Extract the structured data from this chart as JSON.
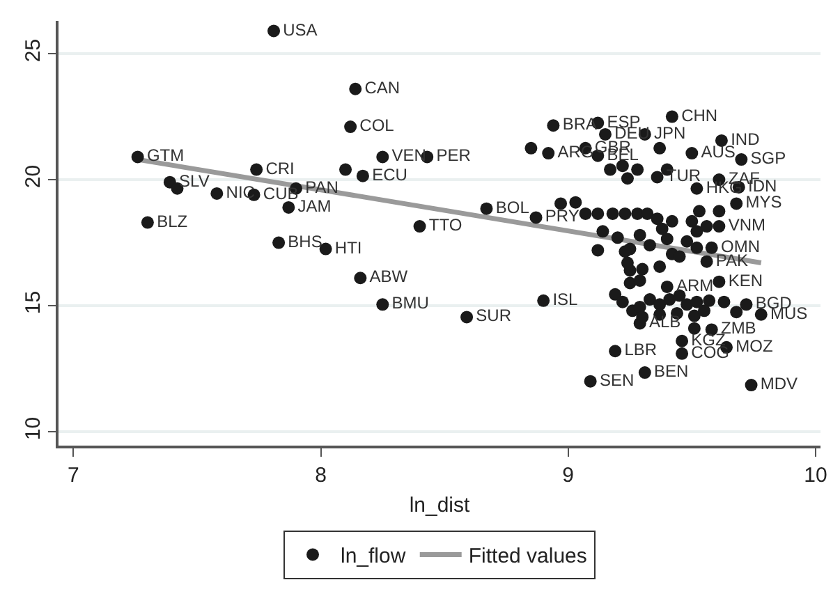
{
  "chart_data": {
    "type": "scatter",
    "xlabel": "ln_dist",
    "xlim": [
      6.94,
      10.02
    ],
    "xticks": [
      7,
      8,
      9,
      10
    ],
    "ylim": [
      9.45,
      26.3
    ],
    "yticks": [
      10,
      15,
      20,
      25
    ],
    "grid": "y",
    "legend": "bottom",
    "series": [
      {
        "name": "ln_flow",
        "marker": "circle",
        "color": "#1a1a1a",
        "x": [
          7.81,
          8.14,
          8.12,
          7.26,
          7.74,
          8.1,
          8.25,
          8.43,
          8.17,
          7.39,
          7.42,
          7.58,
          7.73,
          7.9,
          7.87,
          7.3,
          7.83,
          8.02,
          8.4,
          8.16,
          8.25,
          8.67,
          8.87,
          8.59,
          8.9,
          9.19,
          9.09,
          9.31,
          9.74,
          9.46,
          9.46,
          9.64,
          9.58,
          9.51,
          9.78,
          9.72,
          9.61,
          9.4,
          9.56,
          9.42,
          9.58,
          9.68,
          9.61,
          9.69,
          9.61,
          9.52,
          9.7,
          9.62,
          9.5,
          9.37,
          9.31,
          9.42,
          9.12,
          8.94,
          9.15,
          8.85,
          8.92,
          9.07,
          9.12,
          9.22,
          9.28,
          9.36,
          9.24,
          9.12,
          9.25,
          9.29,
          8.97,
          9.03,
          9.07,
          9.12,
          9.18,
          9.23,
          9.28,
          9.32,
          9.36,
          9.42,
          9.5,
          9.53,
          9.52,
          9.38,
          9.29,
          9.2,
          9.14,
          9.25,
          9.33,
          9.4,
          9.48,
          9.52,
          9.61,
          9.56,
          9.23,
          9.24,
          9.25,
          9.29,
          9.3,
          9.37,
          9.45,
          9.19,
          9.22,
          9.26,
          9.29,
          9.33,
          9.37,
          9.41,
          9.45,
          9.48,
          9.52,
          9.57,
          9.63,
          9.3,
          9.37,
          9.44,
          9.51,
          9.55,
          9.68,
          9.17,
          9.4
        ],
        "values": [
          25.9,
          23.6,
          22.1,
          20.9,
          20.4,
          20.4,
          20.9,
          20.9,
          20.15,
          19.9,
          19.65,
          19.45,
          19.4,
          19.65,
          18.9,
          18.3,
          17.5,
          17.25,
          18.15,
          16.1,
          15.05,
          18.85,
          18.5,
          14.55,
          15.2,
          13.2,
          12.0,
          12.35,
          11.85,
          13.1,
          13.6,
          13.35,
          14.05,
          14.1,
          14.65,
          15.05,
          15.95,
          15.75,
          16.75,
          17.05,
          17.3,
          19.05,
          18.15,
          19.7,
          20.0,
          19.65,
          20.8,
          21.55,
          21.05,
          21.25,
          21.8,
          22.5,
          22.25,
          22.15,
          21.8,
          21.25,
          21.05,
          21.25,
          20.95,
          20.55,
          20.4,
          20.1,
          20.05,
          17.2,
          16.4,
          14.3,
          19.05,
          19.1,
          18.65,
          18.65,
          18.65,
          18.65,
          18.65,
          18.65,
          18.45,
          18.35,
          18.35,
          18.75,
          17.95,
          18.05,
          17.8,
          17.7,
          17.95,
          17.25,
          17.4,
          17.65,
          17.55,
          17.3,
          18.75,
          18.15,
          17.15,
          16.7,
          15.9,
          16.0,
          16.45,
          16.55,
          16.95,
          15.45,
          15.15,
          14.8,
          14.95,
          15.25,
          15.05,
          15.25,
          15.4,
          15.05,
          15.15,
          15.2,
          15.15,
          14.55,
          14.65,
          14.7,
          14.6,
          14.8,
          14.75,
          20.4,
          20.4
        ],
        "value_labels": [
          "USA",
          "CAN",
          "COL",
          "GTM",
          "CRI",
          null,
          "VEN",
          "PER",
          "ECU",
          "SLV",
          null,
          "NIC",
          "CUB",
          "PAN",
          "JAM",
          "BLZ",
          "BHS",
          "HTI",
          "TTO",
          "ABW",
          "BMU",
          "BOL",
          "PRY",
          "SUR",
          "ISL",
          "LBR",
          "SEN",
          "BEN",
          "MDV",
          "COG",
          "KGZ",
          "MOZ",
          "ZMB",
          null,
          "MUS",
          "BGD",
          "KEN",
          "ARM",
          "PAK",
          null,
          "OMN",
          "MYS",
          "VNM",
          "IDN",
          "ZAF",
          "HKG",
          "SGP",
          "IND",
          "AUS",
          null,
          "JPN",
          "CHN",
          "ESP",
          "BRA",
          "DEU",
          null,
          "ARG",
          "GBR",
          "BEL",
          null,
          null,
          "TUR",
          null,
          null,
          null,
          "ALB",
          null,
          null,
          null,
          null,
          null,
          null,
          null,
          null,
          null,
          null,
          null,
          null,
          null,
          null,
          null,
          null,
          null,
          null,
          null,
          null,
          null,
          null,
          null,
          null,
          null,
          null,
          null,
          null,
          null,
          null,
          null,
          null,
          null,
          null,
          null,
          null,
          null,
          null,
          null,
          null,
          null,
          null,
          null,
          null,
          null,
          null,
          null,
          null,
          null,
          null,
          null
        ]
      },
      {
        "name": "Fitted values",
        "type": "line",
        "color": "#9a9a9a",
        "x": [
          7.26,
          9.78
        ],
        "values": [
          20.8,
          16.7
        ]
      }
    ]
  }
}
